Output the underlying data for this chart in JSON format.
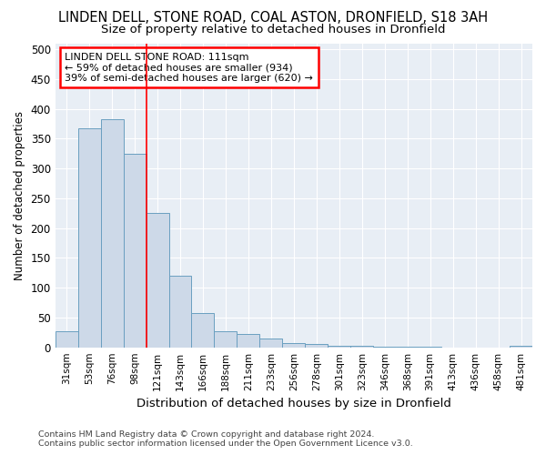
{
  "title": "LINDEN DELL, STONE ROAD, COAL ASTON, DRONFIELD, S18 3AH",
  "subtitle": "Size of property relative to detached houses in Dronfield",
  "xlabel": "Distribution of detached houses by size in Dronfield",
  "ylabel": "Number of detached properties",
  "footer": "Contains HM Land Registry data © Crown copyright and database right 2024.\nContains public sector information licensed under the Open Government Licence v3.0.",
  "bar_categories": [
    "31sqm",
    "53sqm",
    "76sqm",
    "98sqm",
    "121sqm",
    "143sqm",
    "166sqm",
    "188sqm",
    "211sqm",
    "233sqm",
    "256sqm",
    "278sqm",
    "301sqm",
    "323sqm",
    "346sqm",
    "368sqm",
    "391sqm",
    "413sqm",
    "436sqm",
    "458sqm",
    "481sqm"
  ],
  "bar_values": [
    27,
    368,
    383,
    325,
    225,
    120,
    57,
    27,
    22,
    15,
    7,
    5,
    3,
    2,
    1,
    1,
    1,
    0,
    0,
    0,
    3
  ],
  "bar_color": "#cdd9e8",
  "bar_edge_color": "#6a9fc0",
  "vline_x": 3.5,
  "vline_color": "red",
  "annotation_text": "LINDEN DELL STONE ROAD: 111sqm\n← 59% of detached houses are smaller (934)\n39% of semi-detached houses are larger (620) →",
  "ylim": [
    0,
    510
  ],
  "yticks": [
    0,
    50,
    100,
    150,
    200,
    250,
    300,
    350,
    400,
    450,
    500
  ],
  "fig_bg_color": "#ffffff",
  "plot_bg_color": "#e8eef5",
  "title_fontsize": 10.5,
  "subtitle_fontsize": 9.5,
  "grid_color": "#ffffff"
}
